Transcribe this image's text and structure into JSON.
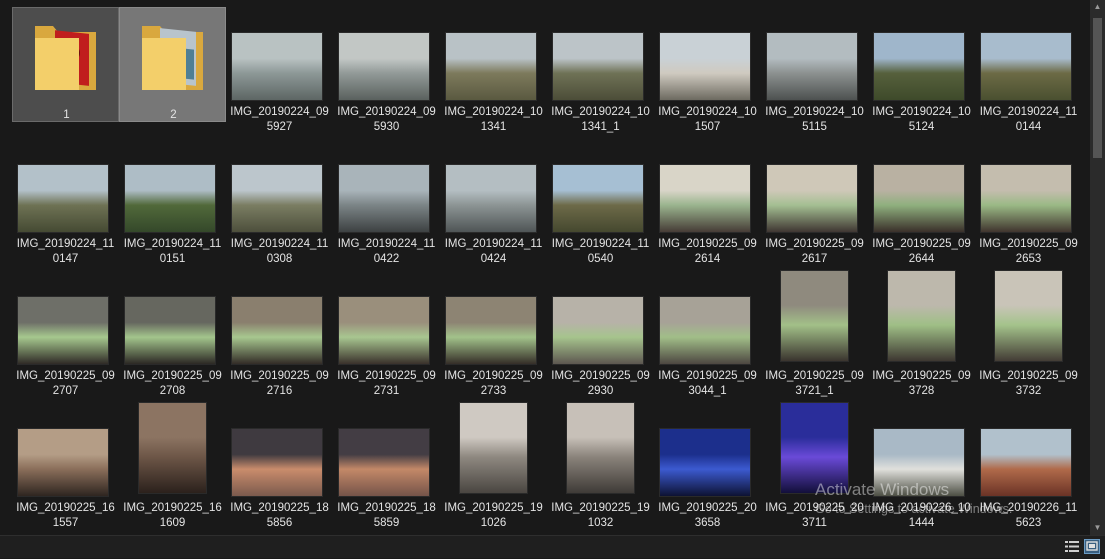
{
  "folders": [
    {
      "label": "1"
    },
    {
      "label": "2"
    }
  ],
  "photos": [
    {
      "line1": "IMG_20190224_09",
      "line2": "5927",
      "orientation": "landscape",
      "palette": [
        "#b9c2c2",
        "#8d9897",
        "#5d6664"
      ]
    },
    {
      "line1": "IMG_20190224_09",
      "line2": "5930",
      "orientation": "landscape",
      "palette": [
        "#c2c7c5",
        "#929a98",
        "#5a615e"
      ]
    },
    {
      "line1": "IMG_20190224_10",
      "line2": "1341",
      "orientation": "landscape",
      "palette": [
        "#b9c2c6",
        "#7d7a5c",
        "#5a5940"
      ]
    },
    {
      "line1": "IMG_20190224_10",
      "line2": "1341_1",
      "orientation": "landscape",
      "palette": [
        "#bcc4c8",
        "#6f7256",
        "#4c4d38"
      ]
    },
    {
      "line1": "IMG_20190224_10",
      "line2": "1507",
      "orientation": "landscape",
      "palette": [
        "#c9d1d6",
        "#cfcac0",
        "#6d6a60"
      ]
    },
    {
      "line1": "IMG_20190224_10",
      "line2": "5115",
      "orientation": "landscape",
      "palette": [
        "#b3bcc0",
        "#8c9190",
        "#4d5150"
      ]
    },
    {
      "line1": "IMG_20190224_10",
      "line2": "5124",
      "orientation": "landscape",
      "palette": [
        "#9fb6cb",
        "#56603c",
        "#3e4a2a"
      ]
    },
    {
      "line1": "IMG_20190224_11",
      "line2": "0144",
      "orientation": "landscape",
      "palette": [
        "#a8bccd",
        "#6c6a45",
        "#4a5030"
      ]
    },
    {
      "line1": "IMG_20190224_11",
      "line2": "0147",
      "orientation": "landscape",
      "palette": [
        "#b3c1c9",
        "#6e7254",
        "#454a33"
      ]
    },
    {
      "line1": "IMG_20190224_11",
      "line2": "0151",
      "orientation": "landscape",
      "palette": [
        "#aebdc6",
        "#51693a",
        "#34482a"
      ]
    },
    {
      "line1": "IMG_20190224_11",
      "line2": "0308",
      "orientation": "landscape",
      "palette": [
        "#bcc6cc",
        "#7a7d62",
        "#4d4f3c"
      ]
    },
    {
      "line1": "IMG_20190224_11",
      "line2": "0422",
      "orientation": "landscape",
      "palette": [
        "#a9b4ba",
        "#7b8486",
        "#3d4142"
      ]
    },
    {
      "line1": "IMG_20190224_11",
      "line2": "0424",
      "orientation": "landscape",
      "palette": [
        "#b4bec2",
        "#8c9494",
        "#4f5556"
      ]
    },
    {
      "line1": "IMG_20190224_11",
      "line2": "0540",
      "orientation": "landscape",
      "palette": [
        "#a6bfd3",
        "#6d6a48",
        "#45482f"
      ]
    },
    {
      "line1": "IMG_20190225_09",
      "line2": "2614",
      "orientation": "landscape",
      "palette": [
        "#d9d5c8",
        "#9ab48e",
        "#463c36"
      ]
    },
    {
      "line1": "IMG_20190225_09",
      "line2": "2617",
      "orientation": "landscape",
      "palette": [
        "#cfc8b8",
        "#a4bf92",
        "#3f3632"
      ]
    },
    {
      "line1": "IMG_20190225_09",
      "line2": "2644",
      "orientation": "landscape",
      "palette": [
        "#b9b1a2",
        "#8fb07e",
        "#3a302a"
      ]
    },
    {
      "line1": "IMG_20190225_09",
      "line2": "2653",
      "orientation": "landscape",
      "palette": [
        "#c4bdae",
        "#9ab985",
        "#40352e"
      ]
    },
    {
      "line1": "IMG_20190225_09",
      "line2": "2707",
      "orientation": "landscape",
      "palette": [
        "#6e6f68",
        "#a6c88e",
        "#2f2a26"
      ]
    },
    {
      "line1": "IMG_20190225_09",
      "line2": "2708",
      "orientation": "landscape",
      "palette": [
        "#66675f",
        "#a3c58c",
        "#2c2824"
      ]
    },
    {
      "line1": "IMG_20190225_09",
      "line2": "2716",
      "orientation": "landscape",
      "palette": [
        "#8a7f6e",
        "#a7c78f",
        "#332c27"
      ]
    },
    {
      "line1": "IMG_20190225_09",
      "line2": "2731",
      "orientation": "landscape",
      "palette": [
        "#9a8f7c",
        "#a8c690",
        "#3a312b"
      ]
    },
    {
      "line1": "IMG_20190225_09",
      "line2": "2733",
      "orientation": "landscape",
      "palette": [
        "#8d8473",
        "#a2c28a",
        "#352e28"
      ]
    },
    {
      "line1": "IMG_20190225_09",
      "line2": "2930",
      "orientation": "landscape",
      "palette": [
        "#b7b2a8",
        "#a6c48d",
        "#5d5750"
      ]
    },
    {
      "line1": "IMG_20190225_09",
      "line2": "3044_1",
      "orientation": "landscape",
      "palette": [
        "#a7a297",
        "#a1be88",
        "#4d4741"
      ]
    },
    {
      "line1": "IMG_20190225_09",
      "line2": "3721_1",
      "orientation": "portrait",
      "palette": [
        "#8f8a7e",
        "#a2c088",
        "#3a342e"
      ]
    },
    {
      "line1": "IMG_20190225_09",
      "line2": "3728",
      "orientation": "portrait",
      "palette": [
        "#bdb8ac",
        "#9fbf86",
        "#3d3731"
      ]
    },
    {
      "line1": "IMG_20190225_09",
      "line2": "3732",
      "orientation": "portrait",
      "palette": [
        "#c9c4b8",
        "#a4c38b",
        "#433c35"
      ]
    },
    {
      "line1": "IMG_20190225_16",
      "line2": "1557",
      "orientation": "landscape",
      "palette": [
        "#b49d86",
        "#8a6e5a",
        "#2e2520"
      ]
    },
    {
      "line1": "IMG_20190225_16",
      "line2": "1609",
      "orientation": "portrait",
      "palette": [
        "#8c7462",
        "#6d5647",
        "#2b211c"
      ]
    },
    {
      "line1": "IMG_20190225_18",
      "line2": "5856",
      "orientation": "landscape",
      "palette": [
        "#3f3a40",
        "#c98c6c",
        "#7b5a4d"
      ]
    },
    {
      "line1": "IMG_20190225_18",
      "line2": "5859",
      "orientation": "landscape",
      "palette": [
        "#433d44",
        "#c38868",
        "#755449"
      ]
    },
    {
      "line1": "IMG_20190225_19",
      "line2": "1026",
      "orientation": "portrait",
      "palette": [
        "#cfc9c2",
        "#8e8880",
        "#4a4641"
      ]
    },
    {
      "line1": "IMG_20190225_19",
      "line2": "1032",
      "orientation": "portrait",
      "palette": [
        "#c7c0b8",
        "#8a837b",
        "#3f3b37"
      ]
    },
    {
      "line1": "IMG_20190225_20",
      "line2": "3658",
      "orientation": "landscape",
      "palette": [
        "#1c2f8c",
        "#3c5ad0",
        "#0d1233"
      ]
    },
    {
      "line1": "IMG_20190225_20",
      "line2": "3711",
      "orientation": "portrait",
      "palette": [
        "#2a2d9a",
        "#6a4ad8",
        "#120f3a"
      ]
    },
    {
      "line1": "IMG_20190226_10",
      "line2": "1444",
      "orientation": "landscape",
      "palette": [
        "#a9b9c6",
        "#e0e0dc",
        "#4d4f44"
      ]
    },
    {
      "line1": "IMG_20190226_11",
      "line2": "5623",
      "orientation": "landscape",
      "palette": [
        "#b1c1cc",
        "#b06a4a",
        "#6a3326"
      ]
    }
  ],
  "watermark": {
    "line1": "Activate Windows",
    "line2": "Go to Settings to activate Windows."
  },
  "statusbar": {
    "details_view_icon": "details-view-icon",
    "large_icons_view_icon": "large-icons-view-icon"
  }
}
